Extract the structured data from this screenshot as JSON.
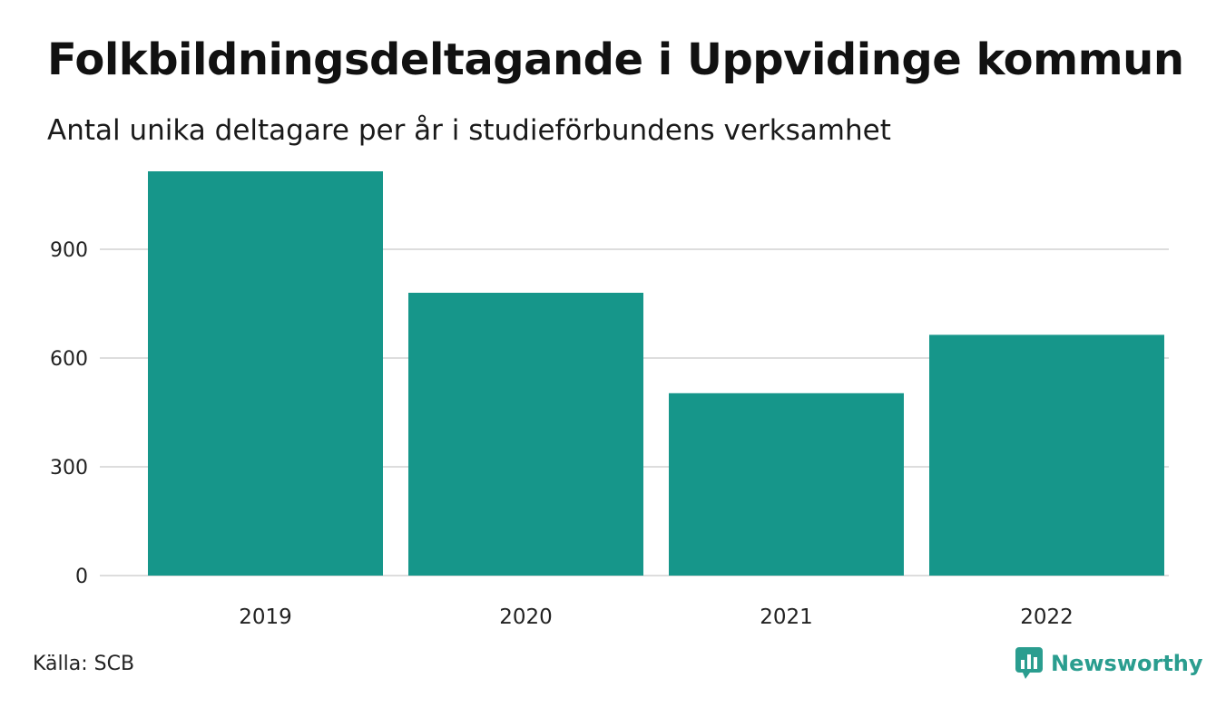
{
  "header": {
    "title": "Folkbildningsdeltagande i Uppvidinge kommun",
    "subtitle": "Antal unika deltagare per år i studieförbundens verksamhet"
  },
  "footer": {
    "source": "Källa: SCB",
    "brand": "Newsworthy"
  },
  "colors": {
    "bar": "#16968a",
    "grid": "#dddddd",
    "brand": "#2a9d8f"
  },
  "chart_data": {
    "type": "bar",
    "title": "Folkbildningsdeltagande i Uppvidinge kommun",
    "subtitle": "Antal unika deltagare per år i studieförbundens verksamhet",
    "categories": [
      "2019",
      "2020",
      "2021",
      "2022"
    ],
    "values": [
      1115,
      780,
      503,
      664
    ],
    "xlabel": "",
    "ylabel": "",
    "ylim": [
      0,
      1150
    ],
    "yticks": [
      0,
      300,
      600,
      900
    ],
    "grid": true
  }
}
